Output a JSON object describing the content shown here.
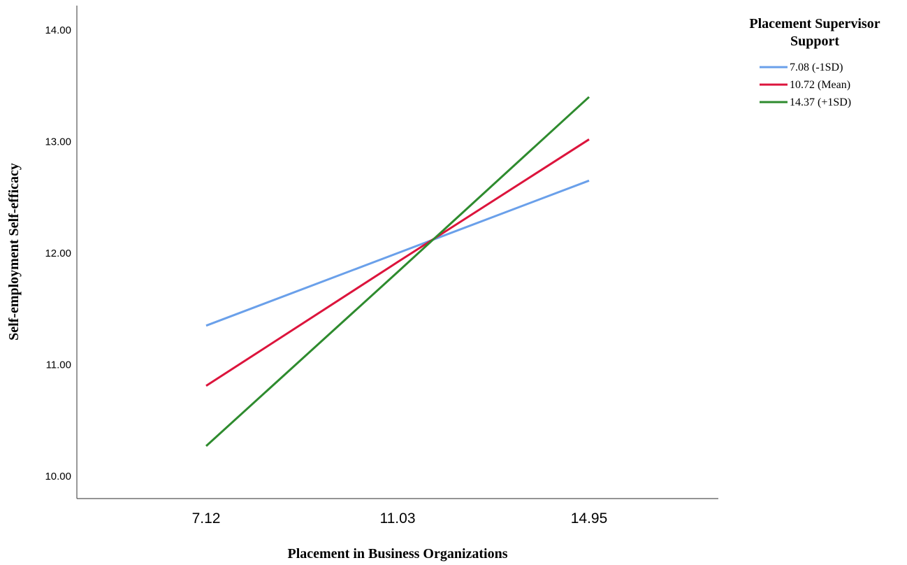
{
  "chart_data": {
    "type": "line",
    "title": "",
    "xlabel": "Placement in Business Organizations",
    "ylabel": "Self-employment Self-efficacy",
    "categories": [
      "7.12",
      "11.03",
      "14.95"
    ],
    "y_ticks": [
      "10.00",
      "11.00",
      "12.00",
      "13.00",
      "14.00"
    ],
    "ylim": [
      9.8,
      14.2
    ],
    "grid": false,
    "legend": {
      "title_line1": "Placement Supervisor",
      "title_line2": "Support",
      "position": "top-right"
    },
    "series": [
      {
        "name": "7.08 (-1SD)",
        "color": "#6aa0ea",
        "values": [
          11.35,
          12.0,
          12.65
        ]
      },
      {
        "name": "10.72 (Mean)",
        "color": "#dc143c",
        "values": [
          10.81,
          11.92,
          13.02
        ]
      },
      {
        "name": "14.37 (+1SD)",
        "color": "#2e8b2e",
        "values": [
          10.27,
          11.83,
          13.4
        ]
      }
    ]
  }
}
